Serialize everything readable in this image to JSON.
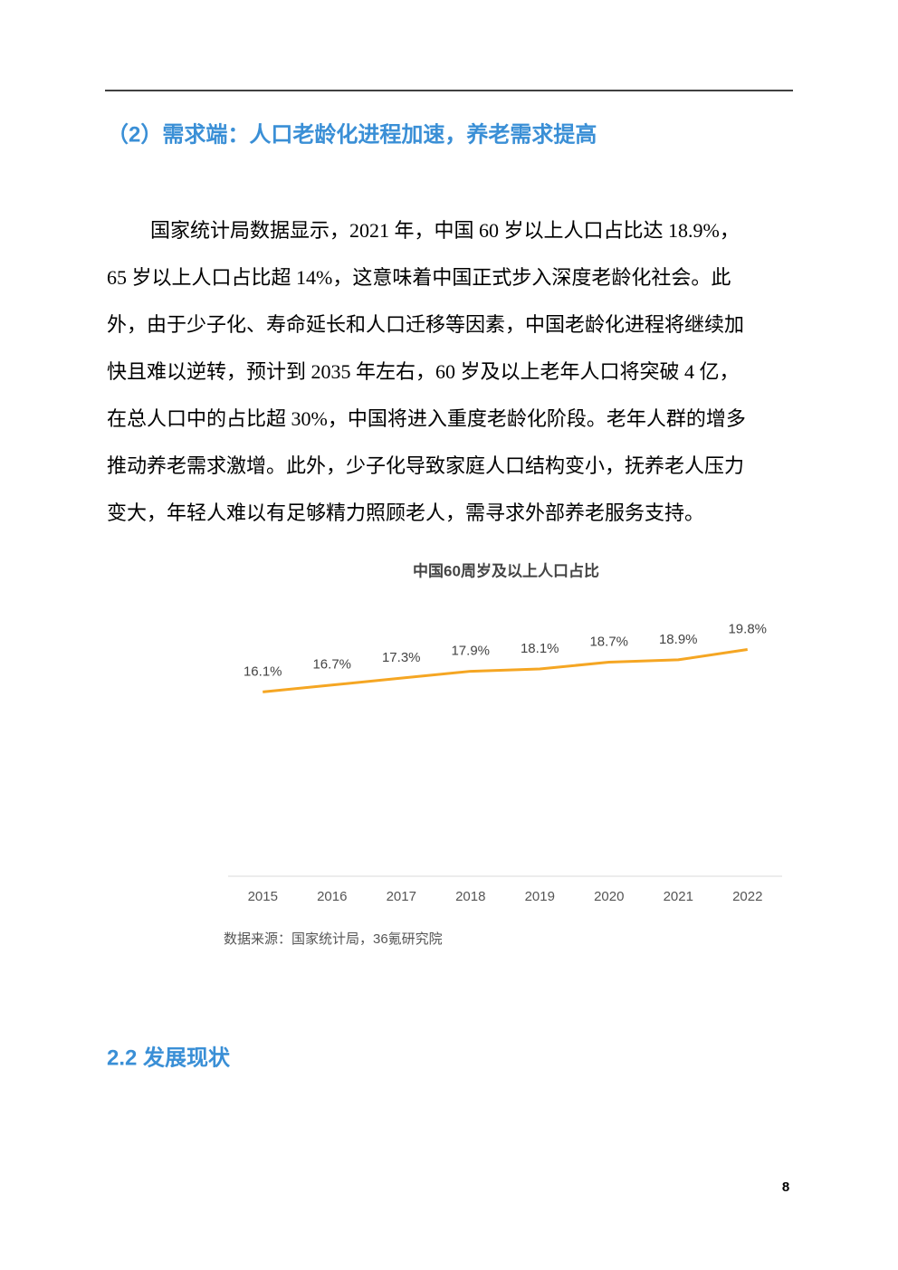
{
  "header": {
    "title": "（2）需求端：人口老龄化进程加速，养老需求提高"
  },
  "paragraph": {
    "lines": [
      "国家统计局数据显示，2021 年，中国 60 岁以上人口占比达 18.9%，",
      "65 岁以上人口占比超 14%，这意味着中国正式步入深度老龄化社会。此",
      "外，由于少子化、寿命延长和人口迁移等因素，中国老龄化进程将继续加",
      "快且难以逆转，预计到 2035 年左右，60 岁及以上老年人口将突破 4 亿，",
      "在总人口中的占比超 30%，中国将进入重度老龄化阶段。老年人群的增多",
      "推动养老需求激增。此外，少子化导致家庭人口结构变小，抚养老人压力",
      "变大，年轻人难以有足够精力照顾老人，需寻求外部养老服务支持。"
    ]
  },
  "chart_data": {
    "type": "line",
    "title": "中国60周岁及以上人口占比",
    "categories": [
      "2015",
      "2016",
      "2017",
      "2018",
      "2019",
      "2020",
      "2021",
      "2022"
    ],
    "series": [
      {
        "color": "#f5a623",
        "values": [
          16.1,
          16.7,
          17.3,
          17.9,
          18.1,
          18.7,
          18.9,
          19.8
        ],
        "value_labels": [
          "16.1%",
          "16.7%",
          "17.3%",
          "17.9%",
          "18.1%",
          "18.7%",
          "18.9%",
          "19.8%"
        ]
      }
    ],
    "ylim": [
      0,
      20
    ],
    "source": "数据来源：国家统计局，36氪研究院"
  },
  "section": {
    "title": "2.2 发展现状"
  },
  "footer": {
    "page": "8"
  }
}
